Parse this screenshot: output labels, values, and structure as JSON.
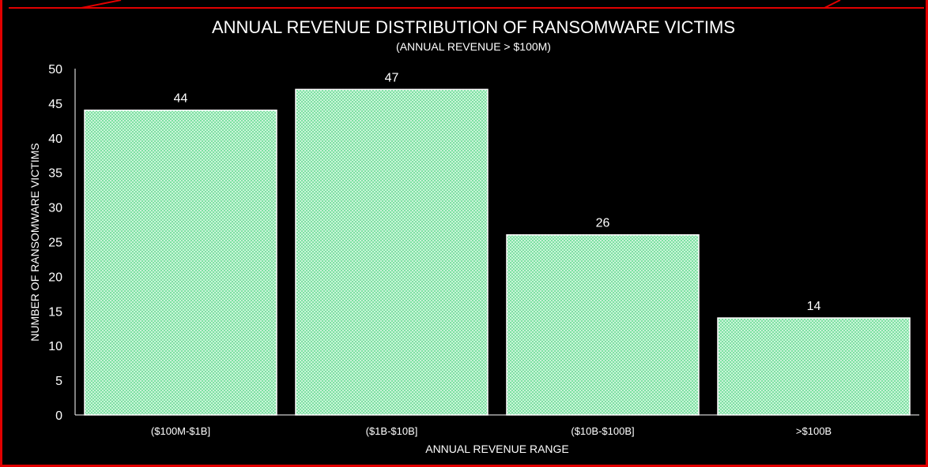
{
  "chart_data": {
    "type": "bar",
    "title": "ANNUAL REVENUE DISTRIBUTION OF RANSOMWARE VICTIMS",
    "subtitle": "(ANNUAL REVENUE > $100M)",
    "xlabel": "ANNUAL REVENUE RANGE",
    "ylabel": "NUMBER OF RANSOMWARE VICTIMS",
    "categories": [
      "($100M-$1B]",
      "($1B-$10B]",
      "($10B-$100B]",
      ">$100B"
    ],
    "values": [
      44,
      47,
      26,
      14
    ],
    "ylim": [
      0,
      50
    ],
    "yticks": [
      0,
      5,
      10,
      15,
      20,
      25,
      30,
      35,
      40,
      45,
      50
    ],
    "grid": false,
    "legend": "none",
    "bar_color": "#7fe0a4",
    "bar_outline_color": "#ffffff",
    "background_color": "#000000",
    "frame_color": "#e10000"
  }
}
